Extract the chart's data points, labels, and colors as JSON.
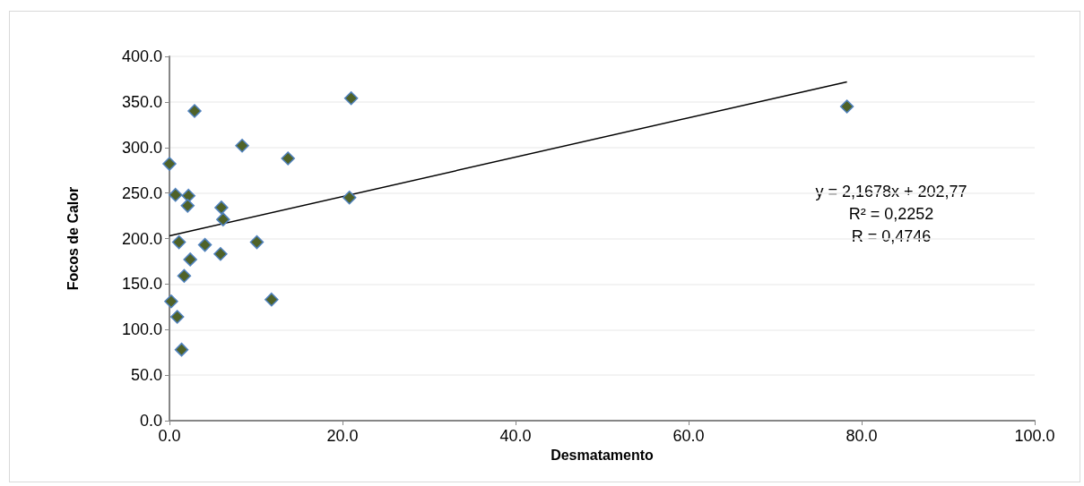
{
  "chart_data": {
    "type": "scatter",
    "xlabel": "Desmatamento",
    "ylabel": "Focos de Calor",
    "series": [
      {
        "marker": "diamond",
        "color": "#4f6228",
        "x": [
          2.9,
          21.0,
          8.4,
          0,
          13.7,
          0.7,
          2.2,
          2.1,
          6.0,
          6.2,
          20.8,
          1.1,
          4.1,
          10.1,
          5.9,
          2.4,
          1.7,
          0.2,
          11.8,
          0.9,
          1.4,
          78.3
        ],
        "values": [
          340,
          354,
          302,
          282,
          288,
          248,
          247,
          236,
          234,
          221,
          245,
          196,
          193,
          196,
          183,
          177,
          159,
          131,
          133,
          114,
          78,
          345
        ]
      },
      {
        "type": "line",
        "marker": "none",
        "color": "#000000",
        "x": [
          0,
          78.3
        ],
        "values": [
          203,
          372
        ]
      }
    ],
    "xlim": [
      0,
      100
    ],
    "xticks": [
      {
        "value": 0,
        "label": "0.0"
      },
      {
        "value": 20,
        "label": "20.0"
      },
      {
        "value": 40,
        "label": "40.0"
      },
      {
        "value": 60,
        "label": "60.0"
      },
      {
        "value": 80,
        "label": "80.0"
      },
      {
        "value": 100,
        "label": "100.0"
      }
    ],
    "ylim": [
      0,
      400
    ],
    "yticks": [
      {
        "value": 0,
        "label": "0.0"
      },
      {
        "value": 50,
        "label": "50.0"
      },
      {
        "value": 100,
        "label": "100.0"
      },
      {
        "value": 150,
        "label": "150.0"
      },
      {
        "value": 200,
        "label": "200.0"
      },
      {
        "value": 250,
        "label": "250.0"
      },
      {
        "value": 300,
        "label": "300.0"
      },
      {
        "value": 350,
        "label": "350.0"
      },
      {
        "value": 400,
        "label": "400.0"
      }
    ],
    "annotations": [
      "y = 2,1678x + 202,77",
      "R² = 0,2252",
      "R = 0,4746"
    ],
    "grid": "y"
  }
}
